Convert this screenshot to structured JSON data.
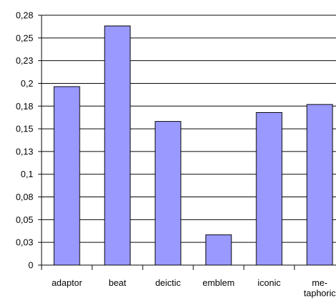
{
  "chart_data": {
    "type": "bar",
    "title": "",
    "xlabel": "",
    "ylabel": "",
    "categories": [
      "adaptor",
      "beat",
      "deictic",
      "emblem",
      "iconic",
      "me-\ntaphoric"
    ],
    "values": [
      0.2,
      0.268,
      0.161,
      0.034,
      0.171,
      0.18
    ],
    "ylim": [
      0,
      0.28
    ],
    "yticks": [
      "0",
      "0,03",
      "0,05",
      "0,08",
      "0,1",
      "0,13",
      "0,15",
      "0,18",
      "0,2",
      "0,23",
      "0,25",
      "0,28"
    ],
    "grid": true,
    "legend": "none",
    "colors": {
      "bar_fill": "#9999ff",
      "bar_stroke": "#000000",
      "grid": "#000000",
      "axis": "#000000",
      "background": "#ffffff"
    }
  }
}
